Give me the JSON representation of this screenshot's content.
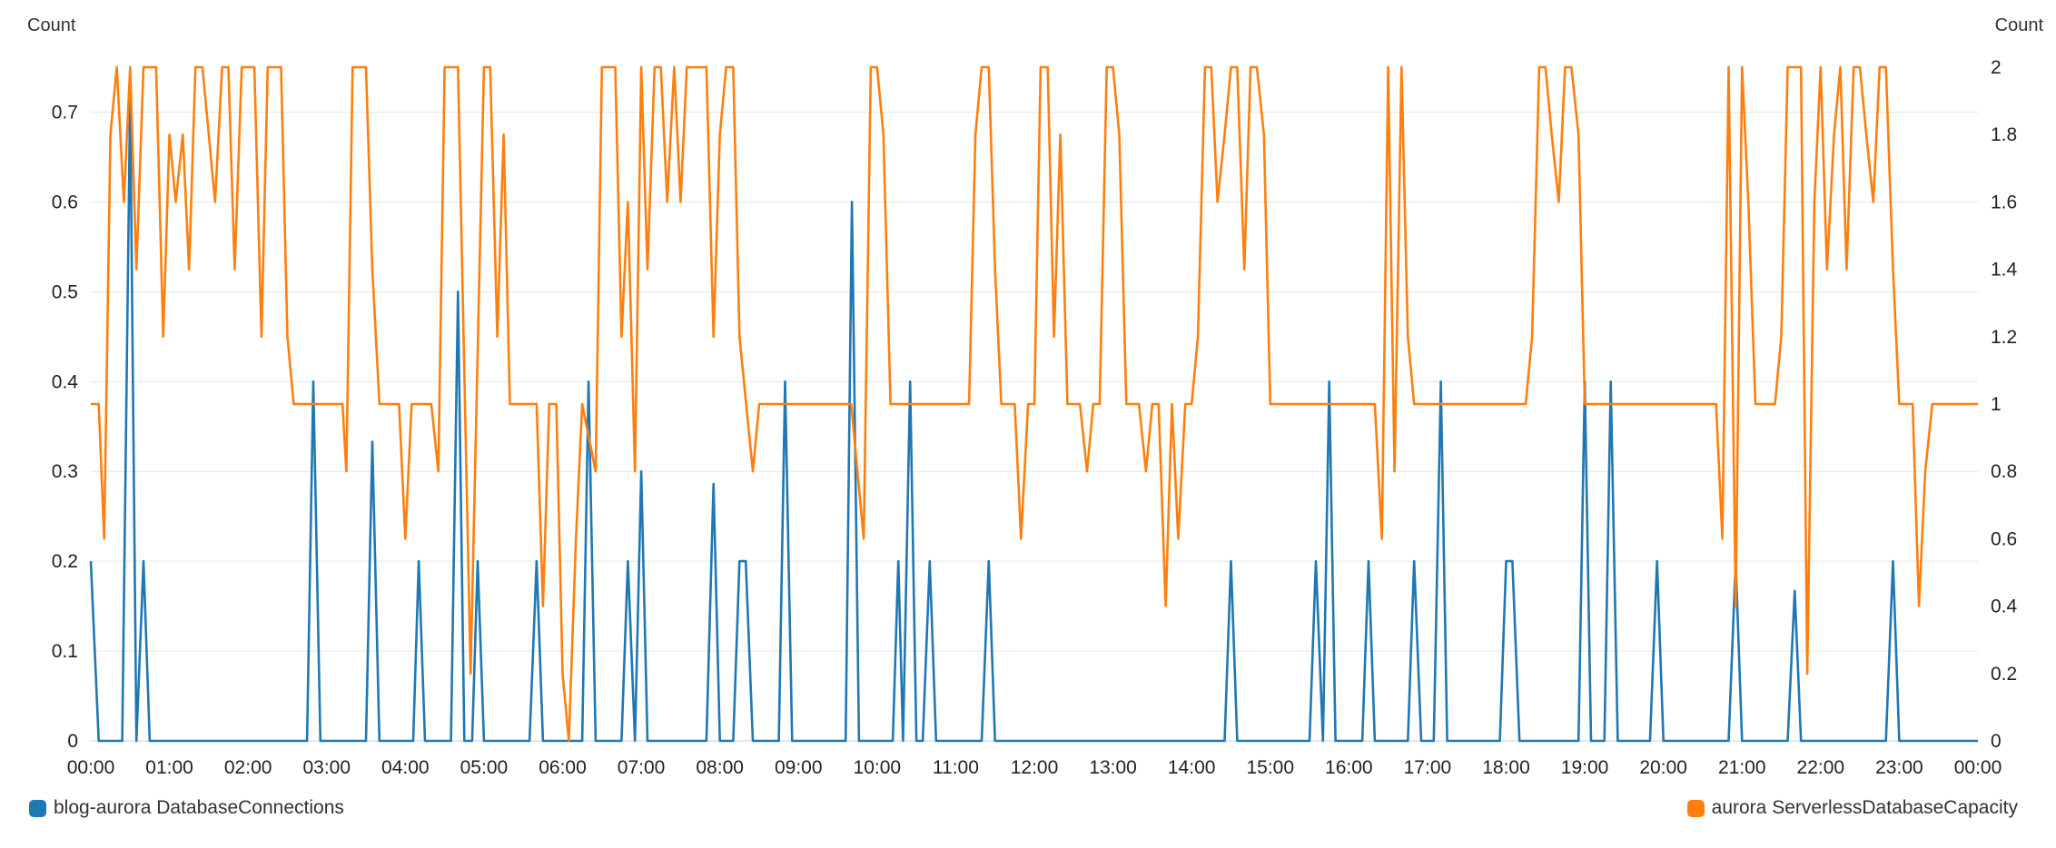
{
  "chart_data": {
    "type": "line",
    "y_left": {
      "label": "Count",
      "ylim": [
        0,
        0.75
      ],
      "ticks": [
        "0",
        "0.1",
        "0.2",
        "0.3",
        "0.4",
        "0.5",
        "0.6",
        "0.7"
      ],
      "tick_values": [
        0,
        0.1,
        0.2,
        0.3,
        0.4,
        0.5,
        0.6,
        0.7
      ]
    },
    "y_right": {
      "label": "Count",
      "ylim": [
        0,
        2
      ],
      "ticks": [
        "0",
        "0.2",
        "0.4",
        "0.6",
        "0.8",
        "1",
        "1.2",
        "1.4",
        "1.6",
        "1.8",
        "2"
      ],
      "tick_values": [
        0,
        0.2,
        0.4,
        0.6,
        0.8,
        1,
        1.2,
        1.4,
        1.6,
        1.8,
        2
      ]
    },
    "x_ticks": [
      "00:00",
      "01:00",
      "02:00",
      "03:00",
      "04:00",
      "05:00",
      "06:00",
      "07:00",
      "08:00",
      "09:00",
      "10:00",
      "11:00",
      "12:00",
      "13:00",
      "14:00",
      "15:00",
      "16:00",
      "17:00",
      "18:00",
      "19:00",
      "20:00",
      "21:00",
      "22:00",
      "23:00",
      "00:00"
    ],
    "x_unit": "hours",
    "xlim": [
      0,
      24
    ],
    "grid": true,
    "legend_placement": "bottom",
    "series": [
      {
        "name": "blog-aurora DatabaseConnections",
        "axis": "left",
        "color": "#1f77b4",
        "points": [
          [
            0,
            0.2
          ],
          [
            0.1,
            0
          ],
          [
            0.4,
            0
          ],
          [
            0.5,
            0.72
          ],
          [
            0.58,
            0
          ],
          [
            0.67,
            0.2
          ],
          [
            0.75,
            0
          ],
          [
            2.75,
            0
          ],
          [
            2.83,
            0.4
          ],
          [
            2.92,
            0
          ],
          [
            3.5,
            0
          ],
          [
            3.58,
            0.333
          ],
          [
            3.67,
            0
          ],
          [
            4.1,
            0
          ],
          [
            4.17,
            0.2
          ],
          [
            4.25,
            0
          ],
          [
            4.58,
            0
          ],
          [
            4.67,
            0.5
          ],
          [
            4.75,
            0
          ],
          [
            4.85,
            0
          ],
          [
            4.92,
            0.2
          ],
          [
            5.0,
            0
          ],
          [
            5.58,
            0
          ],
          [
            5.67,
            0.2
          ],
          [
            5.75,
            0
          ],
          [
            5.9,
            0
          ],
          [
            6.25,
            0
          ],
          [
            6.33,
            0.4
          ],
          [
            6.42,
            0
          ],
          [
            6.75,
            0
          ],
          [
            6.83,
            0.2
          ],
          [
            6.92,
            0
          ],
          [
            7.0,
            0.3
          ],
          [
            7.08,
            0
          ],
          [
            7.83,
            0
          ],
          [
            7.92,
            0.286
          ],
          [
            8.0,
            0
          ],
          [
            8.17,
            0
          ],
          [
            8.25,
            0.2
          ],
          [
            8.33,
            0.2
          ],
          [
            8.42,
            0
          ],
          [
            8.75,
            0
          ],
          [
            8.83,
            0.4
          ],
          [
            8.92,
            0
          ],
          [
            9.6,
            0
          ],
          [
            9.68,
            0.6
          ],
          [
            9.77,
            0
          ],
          [
            10.2,
            0
          ],
          [
            10.27,
            0.2
          ],
          [
            10.33,
            0
          ],
          [
            10.42,
            0.4
          ],
          [
            10.5,
            0
          ],
          [
            10.58,
            0
          ],
          [
            10.67,
            0.2
          ],
          [
            10.75,
            0
          ],
          [
            11.33,
            0
          ],
          [
            11.42,
            0.2
          ],
          [
            11.5,
            0
          ],
          [
            14.42,
            0
          ],
          [
            14.5,
            0.2
          ],
          [
            14.58,
            0
          ],
          [
            15.5,
            0
          ],
          [
            15.58,
            0.2
          ],
          [
            15.67,
            0
          ],
          [
            15.75,
            0.4
          ],
          [
            15.83,
            0
          ],
          [
            16.17,
            0
          ],
          [
            16.25,
            0.2
          ],
          [
            16.33,
            0
          ],
          [
            16.75,
            0
          ],
          [
            16.83,
            0.2
          ],
          [
            16.92,
            0
          ],
          [
            17.08,
            0
          ],
          [
            17.17,
            0.4
          ],
          [
            17.25,
            0
          ],
          [
            17.92,
            0
          ],
          [
            18.0,
            0.2
          ],
          [
            18.08,
            0.2
          ],
          [
            18.17,
            0
          ],
          [
            18.92,
            0
          ],
          [
            19.0,
            0.4
          ],
          [
            19.08,
            0
          ],
          [
            19.25,
            0
          ],
          [
            19.33,
            0.4
          ],
          [
            19.42,
            0
          ],
          [
            19.83,
            0
          ],
          [
            19.92,
            0.2
          ],
          [
            20.0,
            0
          ],
          [
            20.83,
            0
          ],
          [
            20.92,
            0.2
          ],
          [
            21.0,
            0
          ],
          [
            21.58,
            0
          ],
          [
            21.67,
            0.167
          ],
          [
            21.75,
            0
          ],
          [
            22.83,
            0
          ],
          [
            22.92,
            0.2
          ],
          [
            23.0,
            0
          ],
          [
            24.0,
            0
          ]
        ]
      },
      {
        "name": "aurora ServerlessDatabaseCapacity",
        "axis": "right",
        "color": "#ff7f0e",
        "points": [
          [
            0,
            1
          ],
          [
            0.1,
            1
          ],
          [
            0.17,
            0.6
          ],
          [
            0.25,
            1.8
          ],
          [
            0.33,
            2
          ],
          [
            0.42,
            1.6
          ],
          [
            0.5,
            2
          ],
          [
            0.58,
            1.4
          ],
          [
            0.67,
            2
          ],
          [
            0.83,
            2
          ],
          [
            0.92,
            1.2
          ],
          [
            1.0,
            1.8
          ],
          [
            1.08,
            1.6
          ],
          [
            1.17,
            1.8
          ],
          [
            1.25,
            1.4
          ],
          [
            1.33,
            2
          ],
          [
            1.42,
            2
          ],
          [
            1.5,
            1.8
          ],
          [
            1.58,
            1.6
          ],
          [
            1.67,
            2
          ],
          [
            1.75,
            2
          ],
          [
            1.83,
            1.4
          ],
          [
            1.92,
            2
          ],
          [
            2.08,
            2
          ],
          [
            2.17,
            1.2
          ],
          [
            2.25,
            2
          ],
          [
            2.42,
            2
          ],
          [
            2.5,
            1.2
          ],
          [
            2.58,
            1
          ],
          [
            3.2,
            1
          ],
          [
            3.25,
            0.8
          ],
          [
            3.33,
            2
          ],
          [
            3.5,
            2
          ],
          [
            3.58,
            1.4
          ],
          [
            3.67,
            1
          ],
          [
            3.92,
            1
          ],
          [
            4.0,
            0.6
          ],
          [
            4.08,
            1
          ],
          [
            4.33,
            1
          ],
          [
            4.42,
            0.8
          ],
          [
            4.5,
            2
          ],
          [
            4.67,
            2
          ],
          [
            4.83,
            0.2
          ],
          [
            5.0,
            2
          ],
          [
            5.08,
            2
          ],
          [
            5.17,
            1.2
          ],
          [
            5.25,
            1.8
          ],
          [
            5.33,
            1
          ],
          [
            5.67,
            1
          ],
          [
            5.75,
            0.4
          ],
          [
            5.83,
            1
          ],
          [
            5.92,
            1
          ],
          [
            6.0,
            0.2
          ],
          [
            6.08,
            0
          ],
          [
            6.17,
            0.6
          ],
          [
            6.25,
            1
          ],
          [
            6.42,
            0.8
          ],
          [
            6.5,
            2
          ],
          [
            6.67,
            2
          ],
          [
            6.75,
            1.2
          ],
          [
            6.83,
            1.6
          ],
          [
            6.92,
            0.8
          ],
          [
            7.0,
            2
          ],
          [
            7.08,
            1.4
          ],
          [
            7.17,
            2
          ],
          [
            7.25,
            2
          ],
          [
            7.33,
            1.6
          ],
          [
            7.42,
            2
          ],
          [
            7.5,
            1.6
          ],
          [
            7.58,
            2
          ],
          [
            7.83,
            2
          ],
          [
            7.92,
            1.2
          ],
          [
            8.0,
            1.8
          ],
          [
            8.08,
            2
          ],
          [
            8.17,
            2
          ],
          [
            8.25,
            1.2
          ],
          [
            8.42,
            0.8
          ],
          [
            8.5,
            1
          ],
          [
            9.67,
            1
          ],
          [
            9.83,
            0.6
          ],
          [
            9.92,
            2
          ],
          [
            10.0,
            2
          ],
          [
            10.08,
            1.8
          ],
          [
            10.17,
            1
          ],
          [
            11.17,
            1
          ],
          [
            11.25,
            1.8
          ],
          [
            11.33,
            2
          ],
          [
            11.42,
            2
          ],
          [
            11.5,
            1.4
          ],
          [
            11.58,
            1
          ],
          [
            11.75,
            1
          ],
          [
            11.83,
            0.6
          ],
          [
            11.92,
            1
          ],
          [
            12.0,
            1
          ],
          [
            12.08,
            2
          ],
          [
            12.17,
            2
          ],
          [
            12.25,
            1.2
          ],
          [
            12.33,
            1.8
          ],
          [
            12.42,
            1
          ],
          [
            12.58,
            1
          ],
          [
            12.67,
            0.8
          ],
          [
            12.75,
            1
          ],
          [
            12.83,
            1
          ],
          [
            12.92,
            2
          ],
          [
            13.0,
            2
          ],
          [
            13.08,
            1.8
          ],
          [
            13.17,
            1
          ],
          [
            13.33,
            1
          ],
          [
            13.42,
            0.8
          ],
          [
            13.5,
            1
          ],
          [
            13.58,
            1
          ],
          [
            13.67,
            0.4
          ],
          [
            13.75,
            1
          ],
          [
            13.83,
            0.6
          ],
          [
            13.92,
            1
          ],
          [
            14.0,
            1
          ],
          [
            14.08,
            1.2
          ],
          [
            14.17,
            2
          ],
          [
            14.25,
            2
          ],
          [
            14.33,
            1.6
          ],
          [
            14.42,
            1.8
          ],
          [
            14.5,
            2
          ],
          [
            14.58,
            2
          ],
          [
            14.67,
            1.4
          ],
          [
            14.75,
            2
          ],
          [
            14.83,
            2
          ],
          [
            14.92,
            1.8
          ],
          [
            15.0,
            1
          ],
          [
            16.33,
            1
          ],
          [
            16.42,
            0.6
          ],
          [
            16.5,
            2
          ],
          [
            16.58,
            0.8
          ],
          [
            16.67,
            2
          ],
          [
            16.75,
            1.2
          ],
          [
            16.83,
            1
          ],
          [
            18.25,
            1
          ],
          [
            18.33,
            1.2
          ],
          [
            18.42,
            2
          ],
          [
            18.5,
            2
          ],
          [
            18.58,
            1.8
          ],
          [
            18.67,
            1.6
          ],
          [
            18.75,
            2
          ],
          [
            18.83,
            2
          ],
          [
            18.92,
            1.8
          ],
          [
            19.0,
            1
          ],
          [
            20.67,
            1
          ],
          [
            20.75,
            0.6
          ],
          [
            20.83,
            2
          ],
          [
            20.92,
            0.4
          ],
          [
            21.0,
            2
          ],
          [
            21.08,
            1.6
          ],
          [
            21.17,
            1
          ],
          [
            21.42,
            1
          ],
          [
            21.5,
            1.2
          ],
          [
            21.58,
            2
          ],
          [
            21.75,
            2
          ],
          [
            21.83,
            0.2
          ],
          [
            21.92,
            1.6
          ],
          [
            22.0,
            2
          ],
          [
            22.08,
            1.4
          ],
          [
            22.17,
            1.8
          ],
          [
            22.25,
            2
          ],
          [
            22.33,
            1.4
          ],
          [
            22.42,
            2
          ],
          [
            22.5,
            2
          ],
          [
            22.58,
            1.8
          ],
          [
            22.67,
            1.6
          ],
          [
            22.75,
            2
          ],
          [
            22.83,
            2
          ],
          [
            22.92,
            1.4
          ],
          [
            23.0,
            1
          ],
          [
            23.17,
            1
          ],
          [
            23.25,
            0.4
          ],
          [
            23.33,
            0.8
          ],
          [
            23.42,
            1
          ],
          [
            24.0,
            1
          ]
        ]
      }
    ]
  }
}
